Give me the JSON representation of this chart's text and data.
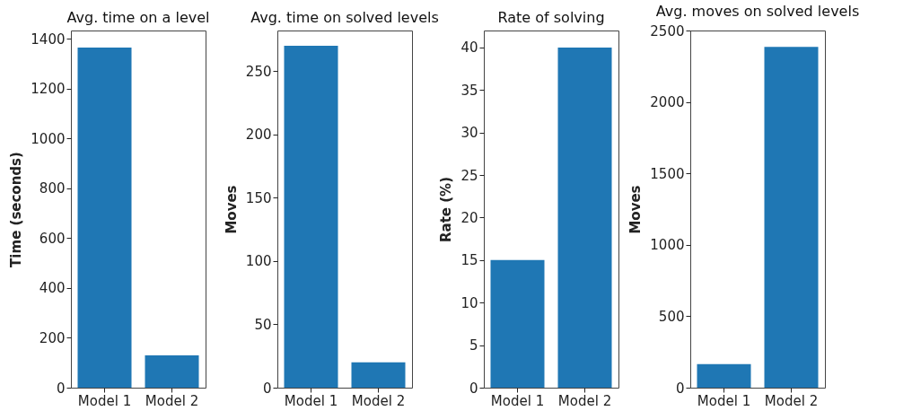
{
  "chart_data": [
    {
      "type": "bar",
      "title": "Avg. time on a level",
      "ylabel": "Time (seconds)",
      "categories": [
        "Model 1",
        "Model 2"
      ],
      "values": [
        1365,
        130
      ],
      "color": "#1f77b4",
      "ylim": [
        0,
        1433
      ],
      "yticks": [
        0,
        200,
        400,
        600,
        800,
        1000,
        1200,
        1400
      ]
    },
    {
      "type": "bar",
      "title": "Avg. time on solved levels",
      "ylabel": "Moves",
      "categories": [
        "Model 1",
        "Model 2"
      ],
      "values": [
        270,
        20
      ],
      "color": "#1f77b4",
      "ylim": [
        0,
        282
      ],
      "yticks": [
        0,
        50,
        100,
        150,
        200,
        250
      ]
    },
    {
      "type": "bar",
      "title": "Rate of solving",
      "ylabel": "Rate (%)",
      "categories": [
        "Model 1",
        "Model 2"
      ],
      "values": [
        15,
        40
      ],
      "color": "#1f77b4",
      "ylim": [
        0,
        42
      ],
      "yticks": [
        0,
        5,
        10,
        15,
        20,
        25,
        30,
        35,
        40
      ]
    },
    {
      "type": "bar",
      "title": "Avg. moves on solved levels",
      "ylabel": "Moves",
      "categories": [
        "Model 1",
        "Model 2"
      ],
      "values": [
        165,
        2385
      ],
      "color": "#1f77b4",
      "ylim": [
        0,
        2500
      ],
      "yticks": [
        0,
        500,
        1000,
        1500,
        2000,
        2500
      ]
    }
  ]
}
